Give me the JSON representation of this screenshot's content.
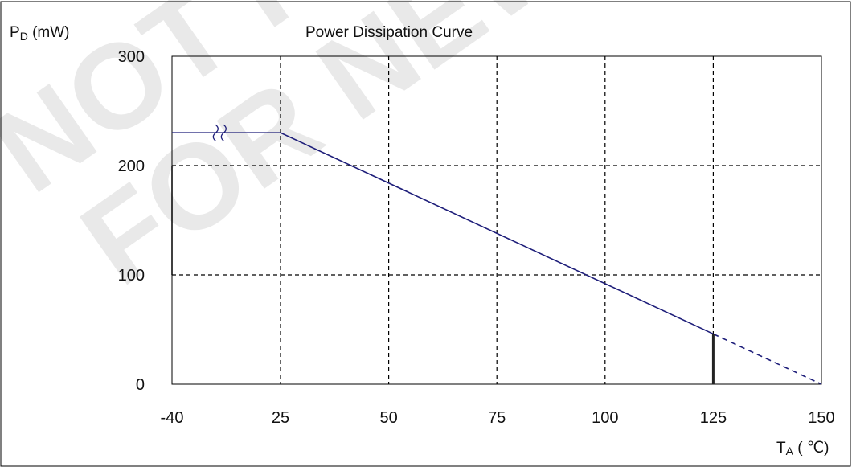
{
  "chart_data": {
    "type": "line",
    "title": "Power Dissipation Curve",
    "ylabel_parts": {
      "main": "P",
      "sub": "D",
      "unit": " (mW)"
    },
    "xlabel_parts": {
      "main": "T",
      "sub": "A",
      "unit": " ( ℃)"
    },
    "x_ticks": [
      -40,
      25,
      50,
      75,
      100,
      125,
      150
    ],
    "x_tick_labels": [
      "-40",
      "25",
      "50",
      "75",
      "100",
      "125",
      "150"
    ],
    "y_ticks": [
      0,
      100,
      200,
      300
    ],
    "y_tick_labels": [
      "0",
      "100",
      "200",
      "300"
    ],
    "xlim": [
      -40,
      150
    ],
    "ylim": [
      0,
      300
    ],
    "x_axis_note": "axis break between -40 and 25",
    "grid": true,
    "series": [
      {
        "segments": [
          {
            "style": "solid",
            "points": [
              [
                -40,
                230
              ],
              [
                25,
                230
              ],
              [
                125,
                46
              ]
            ]
          },
          {
            "style": "dashed",
            "points": [
              [
                125,
                46
              ],
              [
                150,
                0
              ]
            ]
          }
        ],
        "color": "#1e1e7a"
      }
    ],
    "annotations": [
      {
        "type": "vertical-marker",
        "x": 125,
        "y_from": 0,
        "y_to": 46
      }
    ],
    "colors": {
      "curve": "#1e1e7a",
      "grid": "#000000",
      "frame": "#000000"
    }
  },
  "watermark": {
    "line1": "NOT RECOMMENDED",
    "line2": "FOR NEW DESIGN",
    "color": "#e9e9e9"
  }
}
